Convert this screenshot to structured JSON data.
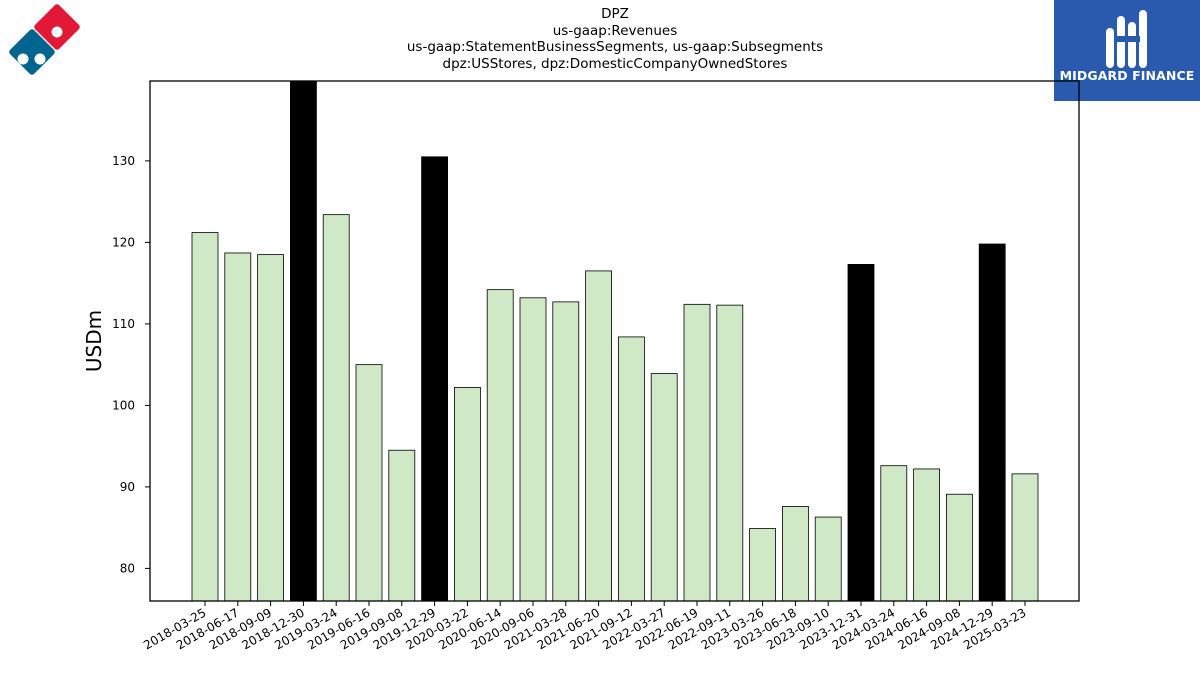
{
  "header": {
    "title_lines": [
      "DPZ",
      "us-gaap:Revenues",
      "us-gaap:StatementBusinessSegments, us-gaap:Subsegments",
      "dpz:USStores, dpz:DomesticCompanyOwnedStores"
    ]
  },
  "logos": {
    "left_icon": "dominos-logo-icon",
    "right_text": "MIDGARD FINANCE",
    "right_icon": "midgard-finance-logo-icon"
  },
  "colors": {
    "quarter_bar": "#cfe9c7",
    "year_end_bar": "#000000",
    "logo_bg": "#2a5aad",
    "dominos_red": "#e31837",
    "dominos_blue": "#006491"
  },
  "chart_data": {
    "type": "bar",
    "title": "DPZ",
    "ylabel": "USDm",
    "xlabel": "",
    "ylim": [
      76,
      139.8
    ],
    "yticks": [
      80,
      90,
      100,
      110,
      120,
      130
    ],
    "categories": [
      "2018-03-25",
      "2018-06-17",
      "2018-09-09",
      "2018-12-30",
      "2019-03-24",
      "2019-06-16",
      "2019-09-08",
      "2019-12-29",
      "2020-03-22",
      "2020-06-14",
      "2020-09-06",
      "2021-03-28",
      "2021-06-20",
      "2021-09-12",
      "2022-03-27",
      "2022-06-19",
      "2022-09-11",
      "2023-03-26",
      "2023-06-18",
      "2023-09-10",
      "2023-12-31",
      "2024-03-24",
      "2024-06-16",
      "2024-09-08",
      "2024-12-29",
      "2025-03-23"
    ],
    "values": [
      121.2,
      118.7,
      118.5,
      141.0,
      123.4,
      105.0,
      94.5,
      130.5,
      102.2,
      114.2,
      113.2,
      112.7,
      116.5,
      108.4,
      103.9,
      112.4,
      112.3,
      84.9,
      87.6,
      86.3,
      117.3,
      92.6,
      92.2,
      89.1,
      119.8,
      91.6
    ],
    "highlight_categories": [
      "2018-12-30",
      "2019-12-29",
      "2023-12-31",
      "2024-12-29"
    ],
    "grid": false,
    "legend": "none"
  }
}
